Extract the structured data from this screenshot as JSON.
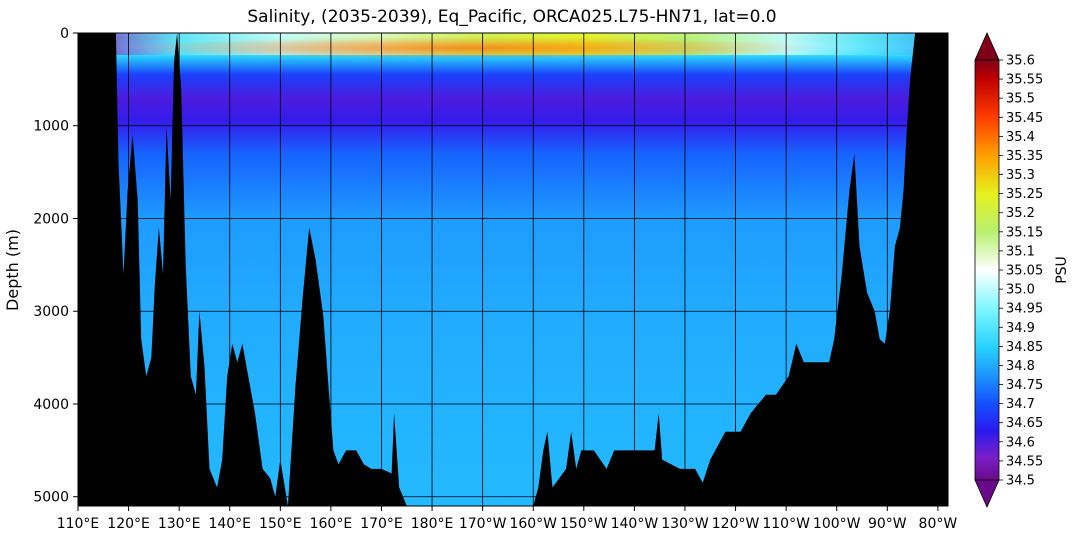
{
  "chart_data": {
    "type": "heatmap",
    "title": "Salinity, (2035-2039), Eq_Pacific, ORCA025.L75-HN71, lat=0.0",
    "ylabel": "Depth (m)",
    "xlabel": "",
    "colorbar_label": "PSU",
    "x_axis": {
      "unit": "degrees longitude (east positive, 360 = 0 deg)",
      "range": [
        110,
        282
      ],
      "ticks": [
        110,
        120,
        130,
        140,
        150,
        160,
        170,
        180,
        190,
        200,
        210,
        220,
        230,
        240,
        250,
        260,
        270,
        280
      ],
      "tick_labels": [
        "110°E",
        "120°E",
        "130°E",
        "140°E",
        "150°E",
        "160°E",
        "170°E",
        "180°E",
        "170°W",
        "160°W",
        "150°W",
        "140°W",
        "130°W",
        "120°W",
        "110°W",
        "100°W",
        "90°W",
        "80°W"
      ]
    },
    "y_axis": {
      "range": [
        0,
        5100
      ],
      "inverted": true,
      "ticks": [
        0,
        1000,
        2000,
        3000,
        4000,
        5000
      ],
      "tick_labels": [
        "0",
        "1000",
        "2000",
        "3000",
        "4000",
        "5000"
      ]
    },
    "grid": true,
    "colorbar": {
      "range": [
        34.5,
        35.6
      ],
      "extend": "both",
      "ticks": [
        34.5,
        34.55,
        34.6,
        34.65,
        34.7,
        34.75,
        34.8,
        34.85,
        34.9,
        34.95,
        35.0,
        35.05,
        35.1,
        35.15,
        35.2,
        35.25,
        35.3,
        35.35,
        35.4,
        35.45,
        35.5,
        35.55,
        35.6
      ],
      "tick_labels": [
        "34.5",
        "34.55",
        "34.6",
        "34.65",
        "34.7",
        "34.75",
        "34.8",
        "34.85",
        "34.9",
        "34.95",
        "35.0",
        "35.05",
        "35.1",
        "35.15",
        "35.2",
        "35.25",
        "35.3",
        "35.35",
        "35.4",
        "35.45",
        "35.5",
        "35.55",
        "35.6"
      ],
      "stops": [
        {
          "value": 34.5,
          "color": "#6a0a8a"
        },
        {
          "value": 34.56,
          "color": "#7a1fc8"
        },
        {
          "value": 34.63,
          "color": "#2a1af0"
        },
        {
          "value": 34.7,
          "color": "#1450ff"
        },
        {
          "value": 34.78,
          "color": "#1e9bff"
        },
        {
          "value": 34.85,
          "color": "#28d2ff"
        },
        {
          "value": 34.95,
          "color": "#7ff7ff"
        },
        {
          "value": 35.05,
          "color": "#ffffff"
        },
        {
          "value": 35.15,
          "color": "#b8f070"
        },
        {
          "value": 35.25,
          "color": "#e6f01e"
        },
        {
          "value": 35.35,
          "color": "#ffa000"
        },
        {
          "value": 35.45,
          "color": "#ff3c00"
        },
        {
          "value": 35.55,
          "color": "#c00000"
        },
        {
          "value": 35.6,
          "color": "#800018"
        }
      ]
    },
    "salinity_profile_by_depth": [
      {
        "depth": 0,
        "salinity": 35.05
      },
      {
        "depth": 60,
        "salinity": 35.15
      },
      {
        "depth": 150,
        "salinity": 35.05
      },
      {
        "depth": 250,
        "salinity": 34.85
      },
      {
        "depth": 450,
        "salinity": 34.68
      },
      {
        "depth": 700,
        "salinity": 34.6
      },
      {
        "depth": 950,
        "salinity": 34.62
      },
      {
        "depth": 1300,
        "salinity": 34.72
      },
      {
        "depth": 2000,
        "salinity": 34.78
      },
      {
        "depth": 3000,
        "salinity": 34.8
      },
      {
        "depth": 5100,
        "salinity": 34.82
      }
    ],
    "surface_salinity_by_longitude": [
      {
        "lon": 110,
        "salinity": 34.55
      },
      {
        "lon": 130,
        "salinity": 34.9
      },
      {
        "lon": 150,
        "salinity": 35.0
      },
      {
        "lon": 170,
        "salinity": 35.1
      },
      {
        "lon": 190,
        "salinity": 35.2
      },
      {
        "lon": 210,
        "salinity": 35.25
      },
      {
        "lon": 230,
        "salinity": 35.15
      },
      {
        "lon": 250,
        "salinity": 35.0
      },
      {
        "lon": 265,
        "salinity": 34.9
      },
      {
        "lon": 282,
        "salinity": 34.8
      }
    ],
    "subsurface_max_core": {
      "depth": 150,
      "lon_range": [
        130,
        260
      ],
      "salinity": 35.4
    },
    "bathymetry_depth_by_longitude": [
      {
        "lon": 110.0,
        "depth": 0
      },
      {
        "lon": 117.5,
        "depth": 0
      },
      {
        "lon": 118.0,
        "depth": 1400
      },
      {
        "lon": 119.0,
        "depth": 2600
      },
      {
        "lon": 119.8,
        "depth": 1700
      },
      {
        "lon": 120.8,
        "depth": 1100
      },
      {
        "lon": 121.8,
        "depth": 1800
      },
      {
        "lon": 122.5,
        "depth": 3300
      },
      {
        "lon": 123.5,
        "depth": 3700
      },
      {
        "lon": 124.5,
        "depth": 3500
      },
      {
        "lon": 125.2,
        "depth": 2700
      },
      {
        "lon": 126.0,
        "depth": 2100
      },
      {
        "lon": 126.8,
        "depth": 2600
      },
      {
        "lon": 127.5,
        "depth": 1000
      },
      {
        "lon": 128.3,
        "depth": 1800
      },
      {
        "lon": 129.0,
        "depth": 300
      },
      {
        "lon": 129.6,
        "depth": 0
      },
      {
        "lon": 130.4,
        "depth": 600
      },
      {
        "lon": 131.3,
        "depth": 2500
      },
      {
        "lon": 132.3,
        "depth": 3700
      },
      {
        "lon": 133.3,
        "depth": 3900
      },
      {
        "lon": 134.0,
        "depth": 3000
      },
      {
        "lon": 135.0,
        "depth": 3600
      },
      {
        "lon": 136.0,
        "depth": 4700
      },
      {
        "lon": 137.5,
        "depth": 4900
      },
      {
        "lon": 138.5,
        "depth": 4600
      },
      {
        "lon": 139.5,
        "depth": 3700
      },
      {
        "lon": 140.5,
        "depth": 3350
      },
      {
        "lon": 141.5,
        "depth": 3550
      },
      {
        "lon": 142.5,
        "depth": 3350
      },
      {
        "lon": 143.5,
        "depth": 3650
      },
      {
        "lon": 145.0,
        "depth": 4100
      },
      {
        "lon": 146.5,
        "depth": 4700
      },
      {
        "lon": 148.0,
        "depth": 4800
      },
      {
        "lon": 149.0,
        "depth": 5000
      },
      {
        "lon": 150.0,
        "depth": 4600
      },
      {
        "lon": 151.5,
        "depth": 5100
      },
      {
        "lon": 153.0,
        "depth": 3800
      },
      {
        "lon": 154.5,
        "depth": 2800
      },
      {
        "lon": 155.7,
        "depth": 2100
      },
      {
        "lon": 157.0,
        "depth": 2450
      },
      {
        "lon": 158.5,
        "depth": 3050
      },
      {
        "lon": 159.5,
        "depth": 3800
      },
      {
        "lon": 160.5,
        "depth": 4500
      },
      {
        "lon": 161.5,
        "depth": 4650
      },
      {
        "lon": 163.0,
        "depth": 4500
      },
      {
        "lon": 165.0,
        "depth": 4500
      },
      {
        "lon": 166.5,
        "depth": 4650
      },
      {
        "lon": 168.0,
        "depth": 4700
      },
      {
        "lon": 170.0,
        "depth": 4700
      },
      {
        "lon": 172.0,
        "depth": 4750
      },
      {
        "lon": 172.5,
        "depth": 4100
      },
      {
        "lon": 173.5,
        "depth": 4900
      },
      {
        "lon": 175.0,
        "depth": 5100
      },
      {
        "lon": 200.0,
        "depth": 5100
      },
      {
        "lon": 201.0,
        "depth": 4900
      },
      {
        "lon": 202.0,
        "depth": 4500
      },
      {
        "lon": 202.8,
        "depth": 4300
      },
      {
        "lon": 203.8,
        "depth": 4900
      },
      {
        "lon": 206.5,
        "depth": 4700
      },
      {
        "lon": 207.5,
        "depth": 4300
      },
      {
        "lon": 208.5,
        "depth": 4700
      },
      {
        "lon": 209.5,
        "depth": 4500
      },
      {
        "lon": 212.0,
        "depth": 4500
      },
      {
        "lon": 214.5,
        "depth": 4700
      },
      {
        "lon": 216.0,
        "depth": 4500
      },
      {
        "lon": 224.0,
        "depth": 4500
      },
      {
        "lon": 224.8,
        "depth": 4100
      },
      {
        "lon": 225.5,
        "depth": 4600
      },
      {
        "lon": 229.0,
        "depth": 4700
      },
      {
        "lon": 232.0,
        "depth": 4700
      },
      {
        "lon": 233.5,
        "depth": 4850
      },
      {
        "lon": 235.0,
        "depth": 4600
      },
      {
        "lon": 238.0,
        "depth": 4300
      },
      {
        "lon": 241.0,
        "depth": 4300
      },
      {
        "lon": 243.0,
        "depth": 4100
      },
      {
        "lon": 246.0,
        "depth": 3900
      },
      {
        "lon": 248.0,
        "depth": 3900
      },
      {
        "lon": 250.5,
        "depth": 3700
      },
      {
        "lon": 252.0,
        "depth": 3350
      },
      {
        "lon": 253.5,
        "depth": 3550
      },
      {
        "lon": 258.5,
        "depth": 3550
      },
      {
        "lon": 259.5,
        "depth": 3300
      },
      {
        "lon": 261.0,
        "depth": 2600
      },
      {
        "lon": 262.5,
        "depth": 1700
      },
      {
        "lon": 263.5,
        "depth": 1300
      },
      {
        "lon": 264.5,
        "depth": 2300
      },
      {
        "lon": 266.0,
        "depth": 2800
      },
      {
        "lon": 267.5,
        "depth": 3000
      },
      {
        "lon": 268.5,
        "depth": 3300
      },
      {
        "lon": 269.5,
        "depth": 3350
      },
      {
        "lon": 270.5,
        "depth": 3000
      },
      {
        "lon": 271.5,
        "depth": 2300
      },
      {
        "lon": 272.5,
        "depth": 2100
      },
      {
        "lon": 273.2,
        "depth": 1700
      },
      {
        "lon": 273.8,
        "depth": 1100
      },
      {
        "lon": 274.5,
        "depth": 500
      },
      {
        "lon": 275.5,
        "depth": 0
      },
      {
        "lon": 282.0,
        "depth": 0
      }
    ]
  }
}
